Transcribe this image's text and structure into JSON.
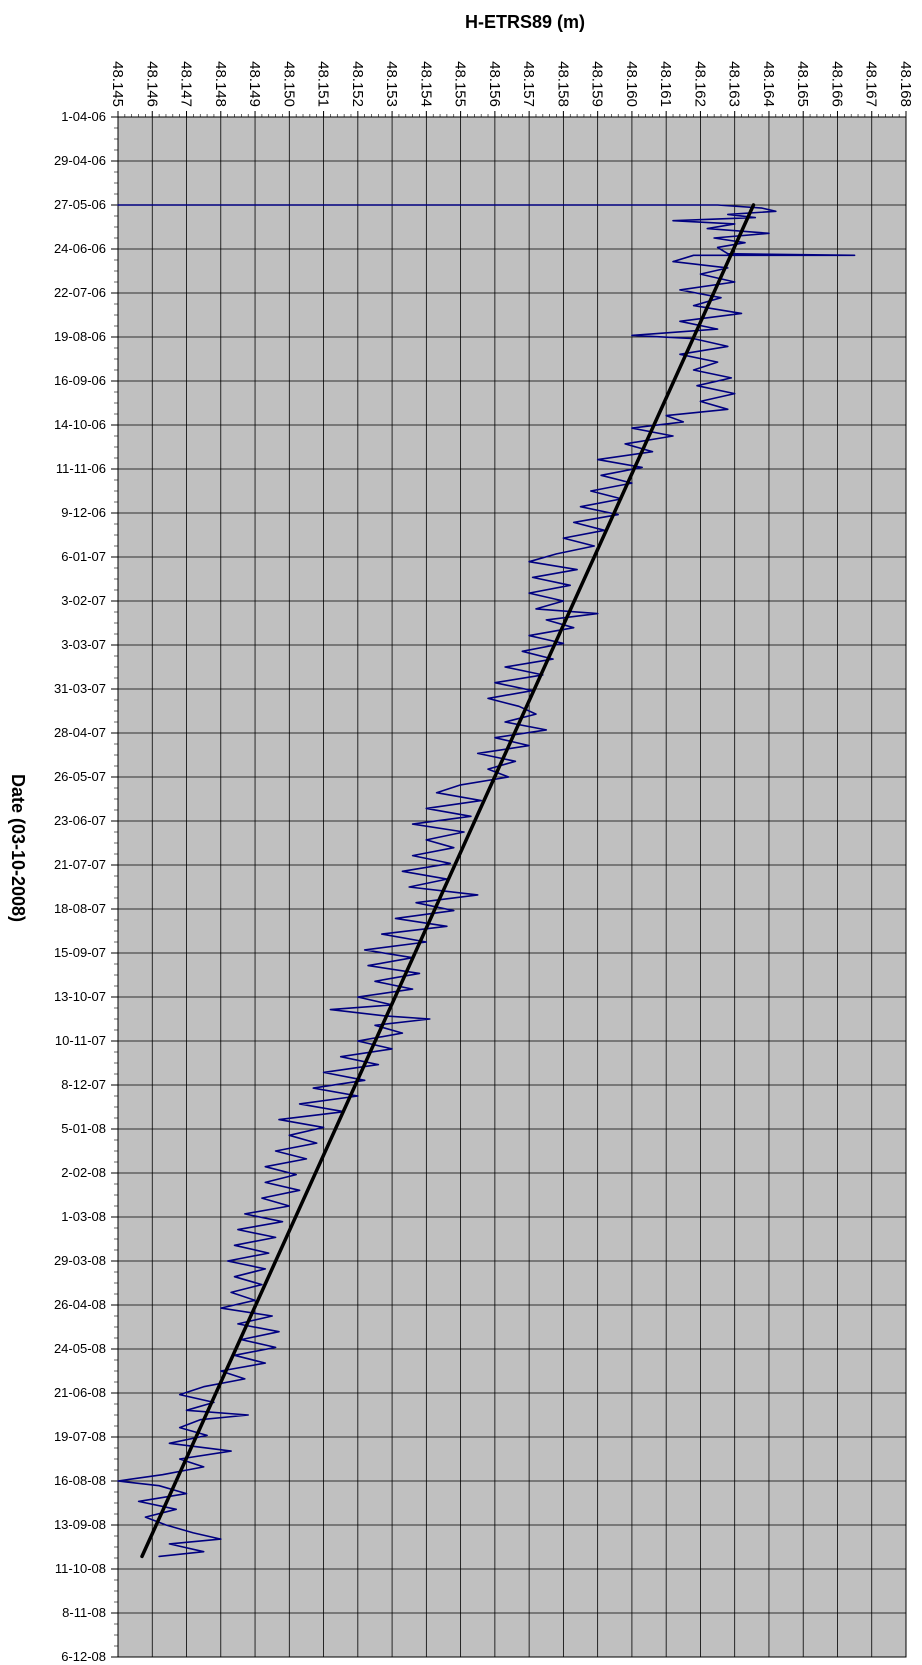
{
  "chart_data": {
    "type": "line",
    "title": "",
    "xlabel": "H-ETRS89 (m)",
    "ylabel": "Date (03-10-2008)",
    "x_axis_position": "top",
    "y_axis_direction": "downward",
    "xlim": [
      48.145,
      48.168
    ],
    "ylim": [
      "1-04-06",
      "6-12-08"
    ],
    "grid": true,
    "plot_background": "#c0c0c0",
    "x_ticks": [
      "48.145",
      "48.146",
      "48.147",
      "48.148",
      "48.149",
      "48.150",
      "48.151",
      "48.152",
      "48.153",
      "48.154",
      "48.155",
      "48.156",
      "48.157",
      "48.158",
      "48.159",
      "48.160",
      "48.161",
      "48.162",
      "48.163",
      "48.164",
      "48.165",
      "48.166",
      "48.167",
      "48.168"
    ],
    "y_ticks": [
      "1-04-06",
      "29-04-06",
      "27-05-06",
      "24-06-06",
      "22-07-06",
      "19-08-06",
      "16-09-06",
      "14-10-06",
      "11-11-06",
      "9-12-06",
      "6-01-07",
      "3-02-07",
      "3-03-07",
      "31-03-07",
      "28-04-07",
      "26-05-07",
      "23-06-07",
      "21-07-07",
      "18-08-07",
      "15-09-07",
      "13-10-07",
      "10-11-07",
      "8-12-07",
      "5-01-08",
      "2-02-08",
      "1-03-08",
      "29-03-08",
      "26-04-08",
      "24-05-08",
      "21-06-08",
      "19-07-08",
      "16-08-08",
      "13-09-08",
      "11-10-08",
      "8-11-08",
      "6-12-08"
    ],
    "series": [
      {
        "color": "#000080",
        "points": [
          {
            "date": "27-05-06",
            "h": 48.145
          },
          {
            "date": "27-05-06",
            "h": 48.1605
          },
          {
            "date": "27-05-06",
            "h": 48.1625
          },
          {
            "date": "29-05-06",
            "h": 48.1638
          },
          {
            "date": "31-05-06",
            "h": 48.1642
          },
          {
            "date": "2-06-06",
            "h": 48.1628
          },
          {
            "date": "4-06-06",
            "h": 48.1636
          },
          {
            "date": "6-06-06",
            "h": 48.1612
          },
          {
            "date": "8-06-06",
            "h": 48.163
          },
          {
            "date": "11-06-06",
            "h": 48.1622
          },
          {
            "date": "14-06-06",
            "h": 48.164
          },
          {
            "date": "17-06-06",
            "h": 48.1624
          },
          {
            "date": "20-06-06",
            "h": 48.1633
          },
          {
            "date": "23-06-06",
            "h": 48.1625
          },
          {
            "date": "27-06-06",
            "h": 48.1628
          },
          {
            "date": "28-06-06",
            "h": 48.1665
          },
          {
            "date": "28-06-06",
            "h": 48.1618
          },
          {
            "date": "2-07-06",
            "h": 48.1612
          },
          {
            "date": "6-07-06",
            "h": 48.1628
          },
          {
            "date": "10-07-06",
            "h": 48.162
          },
          {
            "date": "15-07-06",
            "h": 48.163
          },
          {
            "date": "20-07-06",
            "h": 48.1614
          },
          {
            "date": "25-07-06",
            "h": 48.1626
          },
          {
            "date": "30-07-06",
            "h": 48.1618
          },
          {
            "date": "4-08-06",
            "h": 48.1632
          },
          {
            "date": "9-08-06",
            "h": 48.1614
          },
          {
            "date": "14-08-06",
            "h": 48.1625
          },
          {
            "date": "18-08-06",
            "h": 48.16
          },
          {
            "date": "20-08-06",
            "h": 48.1618
          },
          {
            "date": "25-08-06",
            "h": 48.1628
          },
          {
            "date": "30-08-06",
            "h": 48.1614
          },
          {
            "date": "4-09-06",
            "h": 48.1625
          },
          {
            "date": "9-09-06",
            "h": 48.1618
          },
          {
            "date": "14-09-06",
            "h": 48.1629
          },
          {
            "date": "19-09-06",
            "h": 48.1619
          },
          {
            "date": "24-09-06",
            "h": 48.163
          },
          {
            "date": "29-09-06",
            "h": 48.162
          },
          {
            "date": "4-10-06",
            "h": 48.1628
          },
          {
            "date": "8-10-06",
            "h": 48.161
          },
          {
            "date": "12-10-06",
            "h": 48.1615
          },
          {
            "date": "16-10-06",
            "h": 48.16
          },
          {
            "date": "21-10-06",
            "h": 48.1612
          },
          {
            "date": "26-10-06",
            "h": 48.1598
          },
          {
            "date": "31-10-06",
            "h": 48.1606
          },
          {
            "date": "5-11-06",
            "h": 48.159
          },
          {
            "date": "10-11-06",
            "h": 48.1603
          },
          {
            "date": "15-11-06",
            "h": 48.1591
          },
          {
            "date": "20-11-06",
            "h": 48.16
          },
          {
            "date": "25-11-06",
            "h": 48.1588
          },
          {
            "date": "30-11-06",
            "h": 48.1597
          },
          {
            "date": "5-12-06",
            "h": 48.1585
          },
          {
            "date": "10-12-06",
            "h": 48.1596
          },
          {
            "date": "15-12-06",
            "h": 48.1583
          },
          {
            "date": "20-12-06",
            "h": 48.1592
          },
          {
            "date": "25-12-06",
            "h": 48.158
          },
          {
            "date": "30-12-06",
            "h": 48.1589
          },
          {
            "date": "4-01-07",
            "h": 48.1578
          },
          {
            "date": "9-01-07",
            "h": 48.157
          },
          {
            "date": "14-01-07",
            "h": 48.1584
          },
          {
            "date": "19-01-07",
            "h": 48.1571
          },
          {
            "date": "24-01-07",
            "h": 48.1582
          },
          {
            "date": "29-01-07",
            "h": 48.157
          },
          {
            "date": "3-02-07",
            "h": 48.158
          },
          {
            "date": "8-02-07",
            "h": 48.1572
          },
          {
            "date": "11-02-07",
            "h": 48.159
          },
          {
            "date": "15-02-07",
            "h": 48.1575
          },
          {
            "date": "20-02-07",
            "h": 48.1583
          },
          {
            "date": "25-02-07",
            "h": 48.157
          },
          {
            "date": "2-03-07",
            "h": 48.158
          },
          {
            "date": "7-03-07",
            "h": 48.1568
          },
          {
            "date": "12-03-07",
            "h": 48.1577
          },
          {
            "date": "17-03-07",
            "h": 48.1563
          },
          {
            "date": "22-03-07",
            "h": 48.1574
          },
          {
            "date": "27-03-07",
            "h": 48.156
          },
          {
            "date": "1-04-07",
            "h": 48.1571
          },
          {
            "date": "6-04-07",
            "h": 48.1558
          },
          {
            "date": "11-04-07",
            "h": 48.1567
          },
          {
            "date": "16-04-07",
            "h": 48.1572
          },
          {
            "date": "21-04-07",
            "h": 48.1563
          },
          {
            "date": "26-04-07",
            "h": 48.1575
          },
          {
            "date": "1-05-07",
            "h": 48.156
          },
          {
            "date": "6-05-07",
            "h": 48.157
          },
          {
            "date": "11-05-07",
            "h": 48.1555
          },
          {
            "date": "16-05-07",
            "h": 48.1566
          },
          {
            "date": "21-05-07",
            "h": 48.1558
          },
          {
            "date": "26-05-07",
            "h": 48.1564
          },
          {
            "date": "31-05-07",
            "h": 48.155
          },
          {
            "date": "5-06-07",
            "h": 48.1543
          },
          {
            "date": "10-06-07",
            "h": 48.1556
          },
          {
            "date": "15-06-07",
            "h": 48.154
          },
          {
            "date": "20-06-07",
            "h": 48.1553
          },
          {
            "date": "25-06-07",
            "h": 48.1536
          },
          {
            "date": "30-06-07",
            "h": 48.1551
          },
          {
            "date": "5-07-07",
            "h": 48.154
          },
          {
            "date": "10-07-07",
            "h": 48.1548
          },
          {
            "date": "15-07-07",
            "h": 48.1536
          },
          {
            "date": "20-07-07",
            "h": 48.1547
          },
          {
            "date": "25-07-07",
            "h": 48.1533
          },
          {
            "date": "30-07-07",
            "h": 48.1546
          },
          {
            "date": "4-08-07",
            "h": 48.1535
          },
          {
            "date": "9-08-07",
            "h": 48.1555
          },
          {
            "date": "14-08-07",
            "h": 48.1537
          },
          {
            "date": "19-08-07",
            "h": 48.1548
          },
          {
            "date": "24-08-07",
            "h": 48.1531
          },
          {
            "date": "29-08-07",
            "h": 48.1546
          },
          {
            "date": "3-09-07",
            "h": 48.1527
          },
          {
            "date": "8-09-07",
            "h": 48.154
          },
          {
            "date": "13-09-07",
            "h": 48.1522
          },
          {
            "date": "18-09-07",
            "h": 48.1536
          },
          {
            "date": "23-09-07",
            "h": 48.1523
          },
          {
            "date": "28-09-07",
            "h": 48.1538
          },
          {
            "date": "3-10-07",
            "h": 48.1525
          },
          {
            "date": "8-10-07",
            "h": 48.1536
          },
          {
            "date": "13-10-07",
            "h": 48.152
          },
          {
            "date": "18-10-07",
            "h": 48.153
          },
          {
            "date": "21-10-07",
            "h": 48.1512
          },
          {
            "date": "25-10-07",
            "h": 48.1528
          },
          {
            "date": "27-10-07",
            "h": 48.1541
          },
          {
            "date": "31-10-07",
            "h": 48.1525
          },
          {
            "date": "5-11-07",
            "h": 48.1533
          },
          {
            "date": "10-11-07",
            "h": 48.152
          },
          {
            "date": "15-11-07",
            "h": 48.153
          },
          {
            "date": "20-11-07",
            "h": 48.1515
          },
          {
            "date": "25-11-07",
            "h": 48.1526
          },
          {
            "date": "30-11-07",
            "h": 48.151
          },
          {
            "date": "5-12-07",
            "h": 48.1522
          },
          {
            "date": "10-12-07",
            "h": 48.1507
          },
          {
            "date": "15-12-07",
            "h": 48.152
          },
          {
            "date": "20-12-07",
            "h": 48.1503
          },
          {
            "date": "25-12-07",
            "h": 48.1516
          },
          {
            "date": "30-12-07",
            "h": 48.1497
          },
          {
            "date": "4-01-08",
            "h": 48.151
          },
          {
            "date": "9-01-08",
            "h": 48.15
          },
          {
            "date": "14-01-08",
            "h": 48.1508
          },
          {
            "date": "19-01-08",
            "h": 48.1496
          },
          {
            "date": "24-01-08",
            "h": 48.1505
          },
          {
            "date": "29-01-08",
            "h": 48.1493
          },
          {
            "date": "3-02-08",
            "h": 48.1502
          },
          {
            "date": "8-02-08",
            "h": 48.1493
          },
          {
            "date": "13-02-08",
            "h": 48.1503
          },
          {
            "date": "18-02-08",
            "h": 48.1492
          },
          {
            "date": "23-02-08",
            "h": 48.15
          },
          {
            "date": "28-02-08",
            "h": 48.1487
          },
          {
            "date": "4-03-08",
            "h": 48.1498
          },
          {
            "date": "9-03-08",
            "h": 48.1485
          },
          {
            "date": "14-03-08",
            "h": 48.1496
          },
          {
            "date": "19-03-08",
            "h": 48.1484
          },
          {
            "date": "24-03-08",
            "h": 48.1494
          },
          {
            "date": "29-03-08",
            "h": 48.1482
          },
          {
            "date": "3-04-08",
            "h": 48.1493
          },
          {
            "date": "8-04-08",
            "h": 48.1484
          },
          {
            "date": "13-04-08",
            "h": 48.1492
          },
          {
            "date": "18-04-08",
            "h": 48.1483
          },
          {
            "date": "23-04-08",
            "h": 48.149
          },
          {
            "date": "28-04-08",
            "h": 48.148
          },
          {
            "date": "3-05-08",
            "h": 48.1495
          },
          {
            "date": "8-05-08",
            "h": 48.1485
          },
          {
            "date": "13-05-08",
            "h": 48.1497
          },
          {
            "date": "18-05-08",
            "h": 48.1486
          },
          {
            "date": "23-05-08",
            "h": 48.1496
          },
          {
            "date": "28-05-08",
            "h": 48.1484
          },
          {
            "date": "2-06-08",
            "h": 48.1493
          },
          {
            "date": "7-06-08",
            "h": 48.148
          },
          {
            "date": "12-06-08",
            "h": 48.1487
          },
          {
            "date": "17-06-08",
            "h": 48.1475
          },
          {
            "date": "22-06-08",
            "h": 48.1468
          },
          {
            "date": "27-06-08",
            "h": 48.1478
          },
          {
            "date": "2-07-08",
            "h": 48.147
          },
          {
            "date": "5-07-08",
            "h": 48.1488
          },
          {
            "date": "8-07-08",
            "h": 48.1474
          },
          {
            "date": "13-07-08",
            "h": 48.1468
          },
          {
            "date": "18-07-08",
            "h": 48.1476
          },
          {
            "date": "23-07-08",
            "h": 48.1465
          },
          {
            "date": "28-07-08",
            "h": 48.1483
          },
          {
            "date": "2-08-08",
            "h": 48.1468
          },
          {
            "date": "7-08-08",
            "h": 48.1475
          },
          {
            "date": "12-08-08",
            "h": 48.1463
          },
          {
            "date": "16-08-08",
            "h": 48.145
          },
          {
            "date": "19-08-08",
            "h": 48.1462
          },
          {
            "date": "24-08-08",
            "h": 48.147
          },
          {
            "date": "29-08-08",
            "h": 48.1456
          },
          {
            "date": "3-09-08",
            "h": 48.1467
          },
          {
            "date": "8-09-08",
            "h": 48.1458
          },
          {
            "date": "13-09-08",
            "h": 48.1464
          },
          {
            "date": "18-09-08",
            "h": 48.1472
          },
          {
            "date": "22-09-08",
            "h": 48.148
          },
          {
            "date": "25-09-08",
            "h": 48.1465
          },
          {
            "date": "30-09-08",
            "h": 48.1475
          },
          {
            "date": "3-10-08",
            "h": 48.1462
          }
        ]
      },
      {
        "color": "#000000",
        "points": [
          {
            "date": "27-05-06",
            "h": 48.16355
          },
          {
            "date": "3-10-08",
            "h": 48.1457
          }
        ]
      }
    ]
  }
}
